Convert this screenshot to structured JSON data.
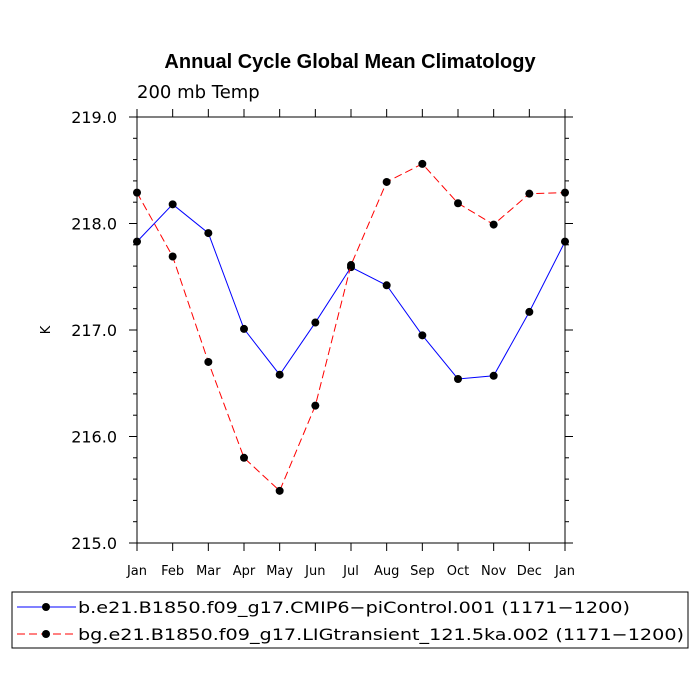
{
  "chart_data": {
    "type": "line",
    "title": "Annual Cycle Global Mean Climatology",
    "subtitle": "200 mb Temp",
    "ylabel": "K",
    "xlabel": "",
    "categories": [
      "Jan",
      "Feb",
      "Mar",
      "Apr",
      "May",
      "Jun",
      "Jul",
      "Aug",
      "Sep",
      "Oct",
      "Nov",
      "Dec",
      "Jan"
    ],
    "ylim": [
      215.0,
      219.0
    ],
    "yticks": [
      215.0,
      216.0,
      217.0,
      218.0,
      219.0
    ],
    "ytick_labels": [
      "215.0",
      "216.0",
      "217.0",
      "218.0",
      "219.0"
    ],
    "grid": false,
    "legend_position": "bottom",
    "series": [
      {
        "name": "b.e21.B1850.f09_g17.CMIP6−piControl.001 (1171−1200)",
        "color": "#0000ff",
        "dash": "solid",
        "values": [
          217.83,
          218.18,
          217.91,
          217.01,
          216.58,
          217.07,
          217.59,
          217.42,
          216.95,
          216.54,
          216.57,
          217.17,
          217.83
        ]
      },
      {
        "name": "bg.e21.B1850.f09_g17.LIGtransient_121.5ka.002 (1171−1200)",
        "color": "#ff0000",
        "dash": "dashed",
        "values": [
          218.29,
          217.69,
          216.7,
          215.8,
          215.49,
          216.29,
          217.61,
          218.39,
          218.56,
          218.19,
          217.99,
          218.28,
          218.29
        ]
      }
    ]
  }
}
